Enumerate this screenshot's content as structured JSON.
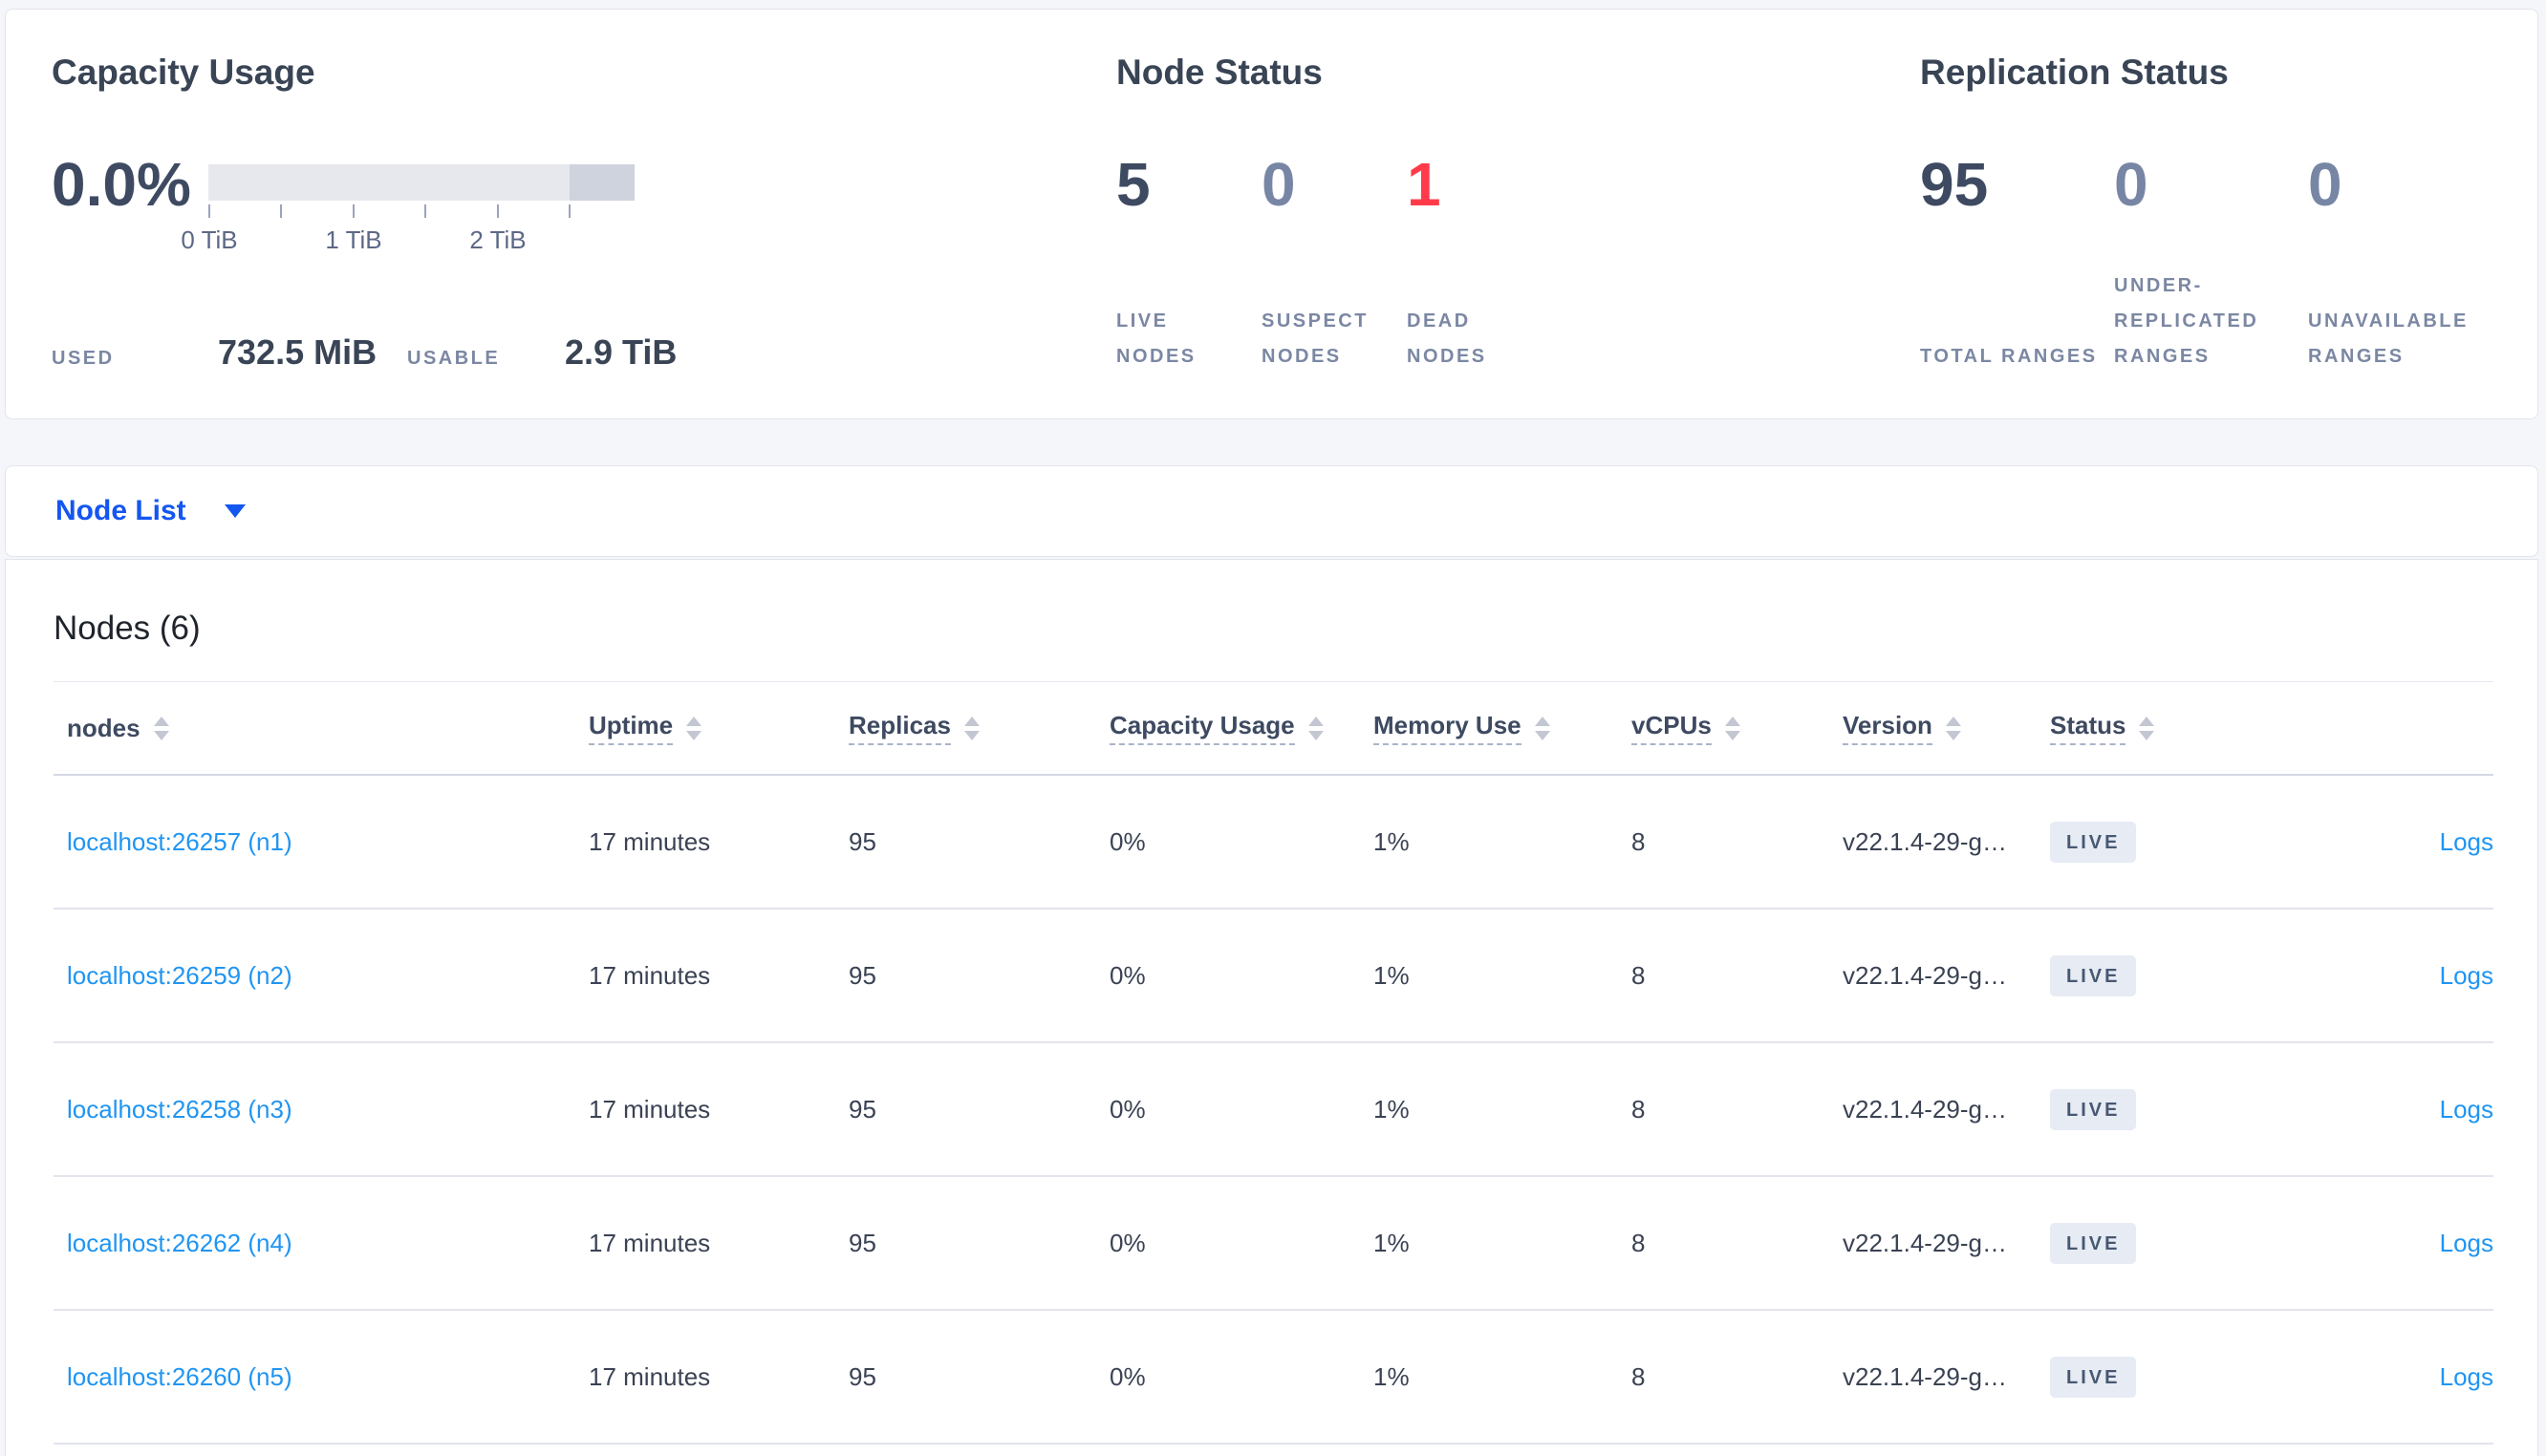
{
  "summary": {
    "capacity": {
      "title": "Capacity Usage",
      "percent": "0.0%",
      "used_label": "USED",
      "used_value": "732.5 MiB",
      "usable_label": "USABLE",
      "usable_value": "2.9 TiB",
      "tick_labels": [
        "0 TiB",
        "1 TiB",
        "2 TiB"
      ],
      "bar": {
        "light_color": "#e7e8ed",
        "dark_color": "#ced3dd"
      }
    },
    "node_status": {
      "title": "Node Status",
      "stats": [
        {
          "value": "5",
          "label": "LIVE NODES",
          "color": "#3e4a61"
        },
        {
          "value": "0",
          "label": "SUSPECT NODES",
          "color": "#7886a5"
        },
        {
          "value": "1",
          "label": "DEAD NODES",
          "color": "#ff3b4b"
        }
      ]
    },
    "replication_status": {
      "title": "Replication Status",
      "stats": [
        {
          "value": "95",
          "label": "TOTAL RANGES",
          "color": "#3e4a61"
        },
        {
          "value": "0",
          "label": "UNDER-REPLICATED RANGES",
          "color": "#7886a5"
        },
        {
          "value": "0",
          "label": "UNAVAILABLE RANGES",
          "color": "#7886a5"
        }
      ]
    }
  },
  "view_selector": {
    "label": "Node List"
  },
  "nodes_section": {
    "title": "Nodes (6)",
    "columns": [
      {
        "key": "node",
        "label": "nodes",
        "sortable": true,
        "tooltip": false
      },
      {
        "key": "uptime",
        "label": "Uptime",
        "sortable": true,
        "tooltip": true
      },
      {
        "key": "replicas",
        "label": "Replicas",
        "sortable": true,
        "tooltip": true
      },
      {
        "key": "capacity_usage",
        "label": "Capacity Usage",
        "sortable": true,
        "tooltip": true
      },
      {
        "key": "memory_use",
        "label": "Memory Use",
        "sortable": true,
        "tooltip": true
      },
      {
        "key": "vcpus",
        "label": "vCPUs",
        "sortable": true,
        "tooltip": true
      },
      {
        "key": "version",
        "label": "Version",
        "sortable": true,
        "tooltip": true
      },
      {
        "key": "status",
        "label": "Status",
        "sortable": true,
        "tooltip": true
      },
      {
        "key": "logs",
        "label": "",
        "sortable": false,
        "tooltip": false
      }
    ],
    "rows": [
      {
        "node": "localhost:26257 (n1)",
        "uptime": "17 minutes",
        "replicas": "95",
        "capacity_usage": "0%",
        "memory_use": "1%",
        "vcpus": "8",
        "version": "v22.1.4-29-g…",
        "status": "LIVE",
        "logs": "Logs"
      },
      {
        "node": "localhost:26259 (n2)",
        "uptime": "17 minutes",
        "replicas": "95",
        "capacity_usage": "0%",
        "memory_use": "1%",
        "vcpus": "8",
        "version": "v22.1.4-29-g…",
        "status": "LIVE",
        "logs": "Logs"
      },
      {
        "node": "localhost:26258 (n3)",
        "uptime": "17 minutes",
        "replicas": "95",
        "capacity_usage": "0%",
        "memory_use": "1%",
        "vcpus": "8",
        "version": "v22.1.4-29-g…",
        "status": "LIVE",
        "logs": "Logs"
      },
      {
        "node": "localhost:26262 (n4)",
        "uptime": "17 minutes",
        "replicas": "95",
        "capacity_usage": "0%",
        "memory_use": "1%",
        "vcpus": "8",
        "version": "v22.1.4-29-g…",
        "status": "LIVE",
        "logs": "Logs"
      },
      {
        "node": "localhost:26260 (n5)",
        "uptime": "17 minutes",
        "replicas": "95",
        "capacity_usage": "0%",
        "memory_use": "1%",
        "vcpus": "8",
        "version": "v22.1.4-29-g…",
        "status": "LIVE",
        "logs": "Logs"
      }
    ]
  },
  "colors": {
    "accent_blue": "#1456f0",
    "link_blue": "#2095f2",
    "live_badge_bg": "#e6ebf4",
    "live_badge_text": "#475872",
    "dead_red": "#ff3b4b"
  }
}
